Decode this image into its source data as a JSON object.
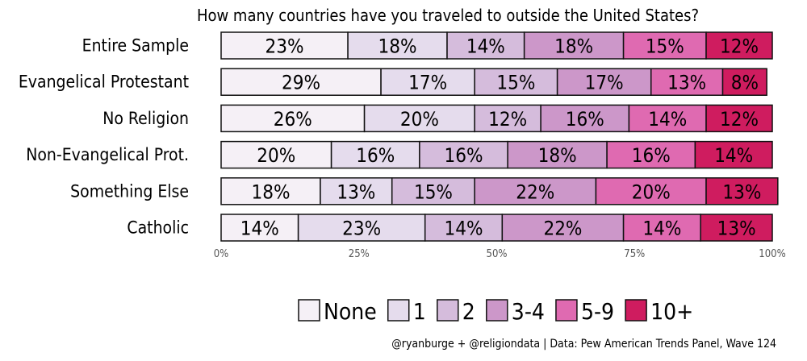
{
  "chart_data": {
    "type": "bar",
    "orientation": "horizontal",
    "stacked": true,
    "title": "How many countries have you traveled to outside the United States?",
    "categories": [
      "Entire Sample",
      "Evangelical Protestant",
      "No Religion",
      "Non-Evangelical Prot.",
      "Something Else",
      "Catholic"
    ],
    "series": [
      {
        "name": "None",
        "color": "#f5f0f6",
        "values": [
          23,
          29,
          26,
          20,
          18,
          14
        ]
      },
      {
        "name": "1",
        "color": "#e5dced",
        "values": [
          18,
          17,
          20,
          16,
          13,
          23
        ]
      },
      {
        "name": "2",
        "color": "#d5bcdc",
        "values": [
          14,
          15,
          12,
          16,
          15,
          14
        ]
      },
      {
        "name": "3-4",
        "color": "#cc97c9",
        "values": [
          18,
          17,
          16,
          18,
          22,
          22
        ]
      },
      {
        "name": "5-9",
        "color": "#df6ab1",
        "values": [
          15,
          13,
          14,
          16,
          20,
          14
        ]
      },
      {
        "name": "10+",
        "color": "#cf1c5f",
        "values": [
          12,
          8,
          12,
          14,
          13,
          13
        ]
      }
    ],
    "xlim": [
      0,
      100
    ],
    "x_ticks": [
      {
        "value": 0,
        "label": "0%"
      },
      {
        "value": 25,
        "label": "25%"
      },
      {
        "value": 50,
        "label": "50%"
      },
      {
        "value": 75,
        "label": "75%"
      },
      {
        "value": 100,
        "label": "100%"
      }
    ],
    "value_suffix": "%",
    "legend_position": "bottom",
    "grid": false
  },
  "caption": "@ryanburge + @religiondata | Data: Pew American Trends Panel, Wave 124"
}
